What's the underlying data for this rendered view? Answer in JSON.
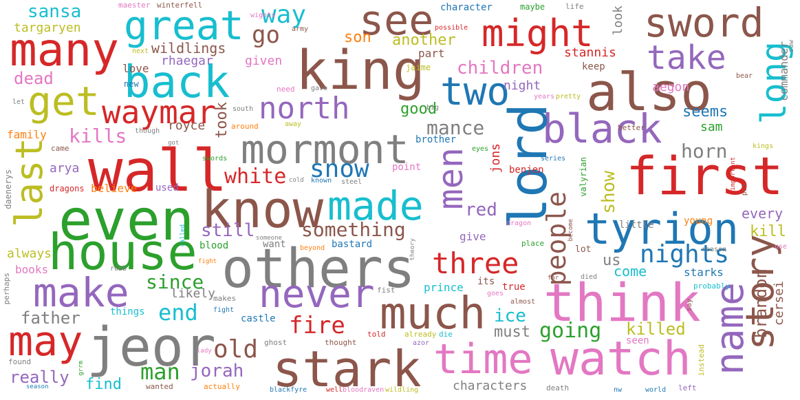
{
  "palette": [
    "#1f77b4",
    "#ff7f0e",
    "#2ca02c",
    "#d62728",
    "#9467bd",
    "#8c564b",
    "#e377c2",
    "#7f7f7f",
    "#bcbd22",
    "#17becf"
  ],
  "words": {
    "others": "others",
    "wall": "wall",
    "even": "even",
    "house": "house",
    "know": "know",
    "mormont": "mormont",
    "king": "king",
    "also": "also",
    "lord": "lord",
    "first": "first",
    "think": "think",
    "watch": "watch",
    "stark": "stark",
    "time": "time",
    "jeor": "jeor",
    "much": "much",
    "tyrion": "tyrion",
    "story": "story",
    "name": "name",
    "great": "great",
    "many": "many",
    "back": "back",
    "get": "get",
    "may": "may",
    "make": "make",
    "might": "might",
    "sword": "sword",
    "see": "see",
    "two": "two",
    "black": "black",
    "take": "take",
    "long": "long",
    "last": "last",
    "made": "made",
    "men": "men",
    "never": "never",
    "north": "north",
    "waymar": "waymar",
    "three": "three",
    "people": "people",
    "snow": "snow",
    "nights": "nights",
    "way": "way",
    "go": "go",
    "sansa": "sansa",
    "targaryen": "targaryen",
    "wildlings": "wildlings",
    "rhaegar": "rhaegar",
    "given": "given",
    "son": "son",
    "another": "another",
    "part": "part",
    "children": "children",
    "stannis": "stannis",
    "dead": "dead",
    "love": "love",
    "new": "new",
    "kills": "kills",
    "family": "family",
    "arya": "arya",
    "dragons": "dragons",
    "believe": "believe",
    "used": "used",
    "royce": "royce",
    "took": "took",
    "white": "white",
    "mance": "mance",
    "good": "good",
    "horn": "horn",
    "show": "show",
    "seems": "seems",
    "sam": "sam",
    "commander": "commander",
    "red": "red",
    "something": "something",
    "still": "still",
    "always": "always",
    "books": "books",
    "since": "since",
    "end": "end",
    "father": "father",
    "likely": "likely",
    "fire": "fire",
    "old": "old",
    "man": "man",
    "jorah": "jorah",
    "really": "really",
    "find": "find",
    "going": "going",
    "killed": "killed",
    "must": "must",
    "ice": "ice",
    "come": "come",
    "us": "us",
    "starks": "starks",
    "every": "every",
    "kill": "kill",
    "little": "little",
    "young": "young",
    "brandon": "brandon",
    "cersei": "cersei",
    "characters": "characters",
    "castle": "castle",
    "blood": "blood",
    "want": "want",
    "bastard": "bastard",
    "give": "give",
    "prince": "prince",
    "true": "true",
    "its": "its",
    "night": "night",
    "keep": "keep",
    "aegon": "aegon",
    "jaime": "jaime",
    "jons": "jons",
    "benjen": "benjen",
    "point": "point",
    "brother": "brother",
    "look": "look",
    "maester": "maester",
    "winterfell": "winterfell",
    "wights": "wights",
    "army": "army",
    "character": "character",
    "maybe": "maybe",
    "life": "life",
    "possible": "possible",
    "saw": "saw",
    "bear": "bear",
    "next": "next",
    "need": "need",
    "gave": "gave",
    "big": "big",
    "years": "years",
    "pretty": "pretty",
    "let": "let",
    "south": "south",
    "around": "around",
    "though": "though",
    "away": "away",
    "got": "got",
    "came": "came",
    "swords": "swords",
    "eyes": "eyes",
    "series": "series",
    "better": "better",
    "kings": "kings",
    "cold": "cold",
    "known": "known",
    "steel": "steel",
    "daenerys": "daenerys",
    "important": "important",
    "put": "put",
    "valyrian": "valyrian",
    "called": "called",
    "someone": "someone",
    "beyond": "beyond",
    "dragon": "dragon",
    "become": "become",
    "theory": "theory",
    "place": "place",
    "lot": "lot",
    "reason": "reason",
    "use": "use",
    "fight": "fight",
    "robb": "robb",
    "far": "far",
    "died": "died",
    "probably": "probably",
    "say": "say",
    "fist": "fist",
    "goes": "goes",
    "almost": "almost",
    "things": "things",
    "makes": "makes",
    "perhaps": "perhaps",
    "thought": "thought",
    "told": "told",
    "already": "already",
    "die": "die",
    "azor": "azor",
    "seen": "seen",
    "instead": "instead",
    "ghost": "ghost",
    "lady": "lady",
    "found": "found",
    "grrm": "grrm",
    "season": "season",
    "wanted": "wanted",
    "actually": "actually",
    "blackfyre": "blackfyre",
    "well": "well",
    "bloodraven": "bloodraven",
    "wildling": "wildling",
    "death": "death",
    "nw": "nw",
    "world": "world",
    "left": "left"
  }
}
